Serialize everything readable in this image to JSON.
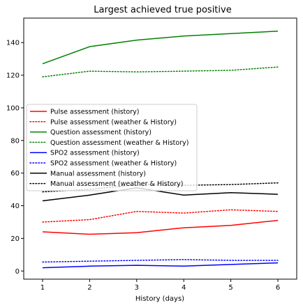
{
  "chart_data": {
    "type": "line",
    "title": "Largest achieved true positive",
    "xlabel": "History (days)",
    "ylabel": "",
    "x": [
      1,
      2,
      3,
      4,
      5,
      6
    ],
    "xlim": [
      0.6,
      6.4
    ],
    "ylim": [
      -5,
      155
    ],
    "xticks": [
      "1",
      "2",
      "3",
      "4",
      "5",
      "6"
    ],
    "yticks": [
      0,
      20,
      40,
      60,
      80,
      100,
      120,
      140
    ],
    "grid": false,
    "legend_position": "center-left",
    "series": [
      {
        "name": "Pulse assessment (history)",
        "color": "#ff0000",
        "style": "solid",
        "values": [
          24,
          22.5,
          23.5,
          26.5,
          28,
          31
        ]
      },
      {
        "name": "Pulse assessment (weather & History)",
        "color": "#ff0000",
        "style": "dotted",
        "values": [
          30,
          31.5,
          36.5,
          35.5,
          37.5,
          36.5
        ]
      },
      {
        "name": "Question assessment (history)",
        "color": "#008000",
        "style": "solid",
        "values": [
          127,
          137.5,
          141.5,
          144,
          145.5,
          147
        ]
      },
      {
        "name": "Question assessment (weather & History)",
        "color": "#008000",
        "style": "dotted",
        "values": [
          119,
          122.5,
          122,
          122.5,
          123,
          125
        ]
      },
      {
        "name": "SPO2 assessment (history)",
        "color": "#0000ff",
        "style": "solid",
        "values": [
          2,
          3,
          3.5,
          3,
          4,
          5
        ]
      },
      {
        "name": "SPO2 assessment (weather & History)",
        "color": "#0000ff",
        "style": "dotted",
        "values": [
          5.5,
          6,
          6.5,
          7,
          6.5,
          6.5
        ]
      },
      {
        "name": "Manual assessment (history)",
        "color": "#000000",
        "style": "solid",
        "values": [
          43,
          46.5,
          51,
          46.5,
          48,
          47
        ]
      },
      {
        "name": "Manual assessment (weather & History)",
        "color": "#000000",
        "style": "dotted",
        "values": [
          48.5,
          50,
          53,
          52.5,
          53,
          54
        ]
      }
    ]
  }
}
